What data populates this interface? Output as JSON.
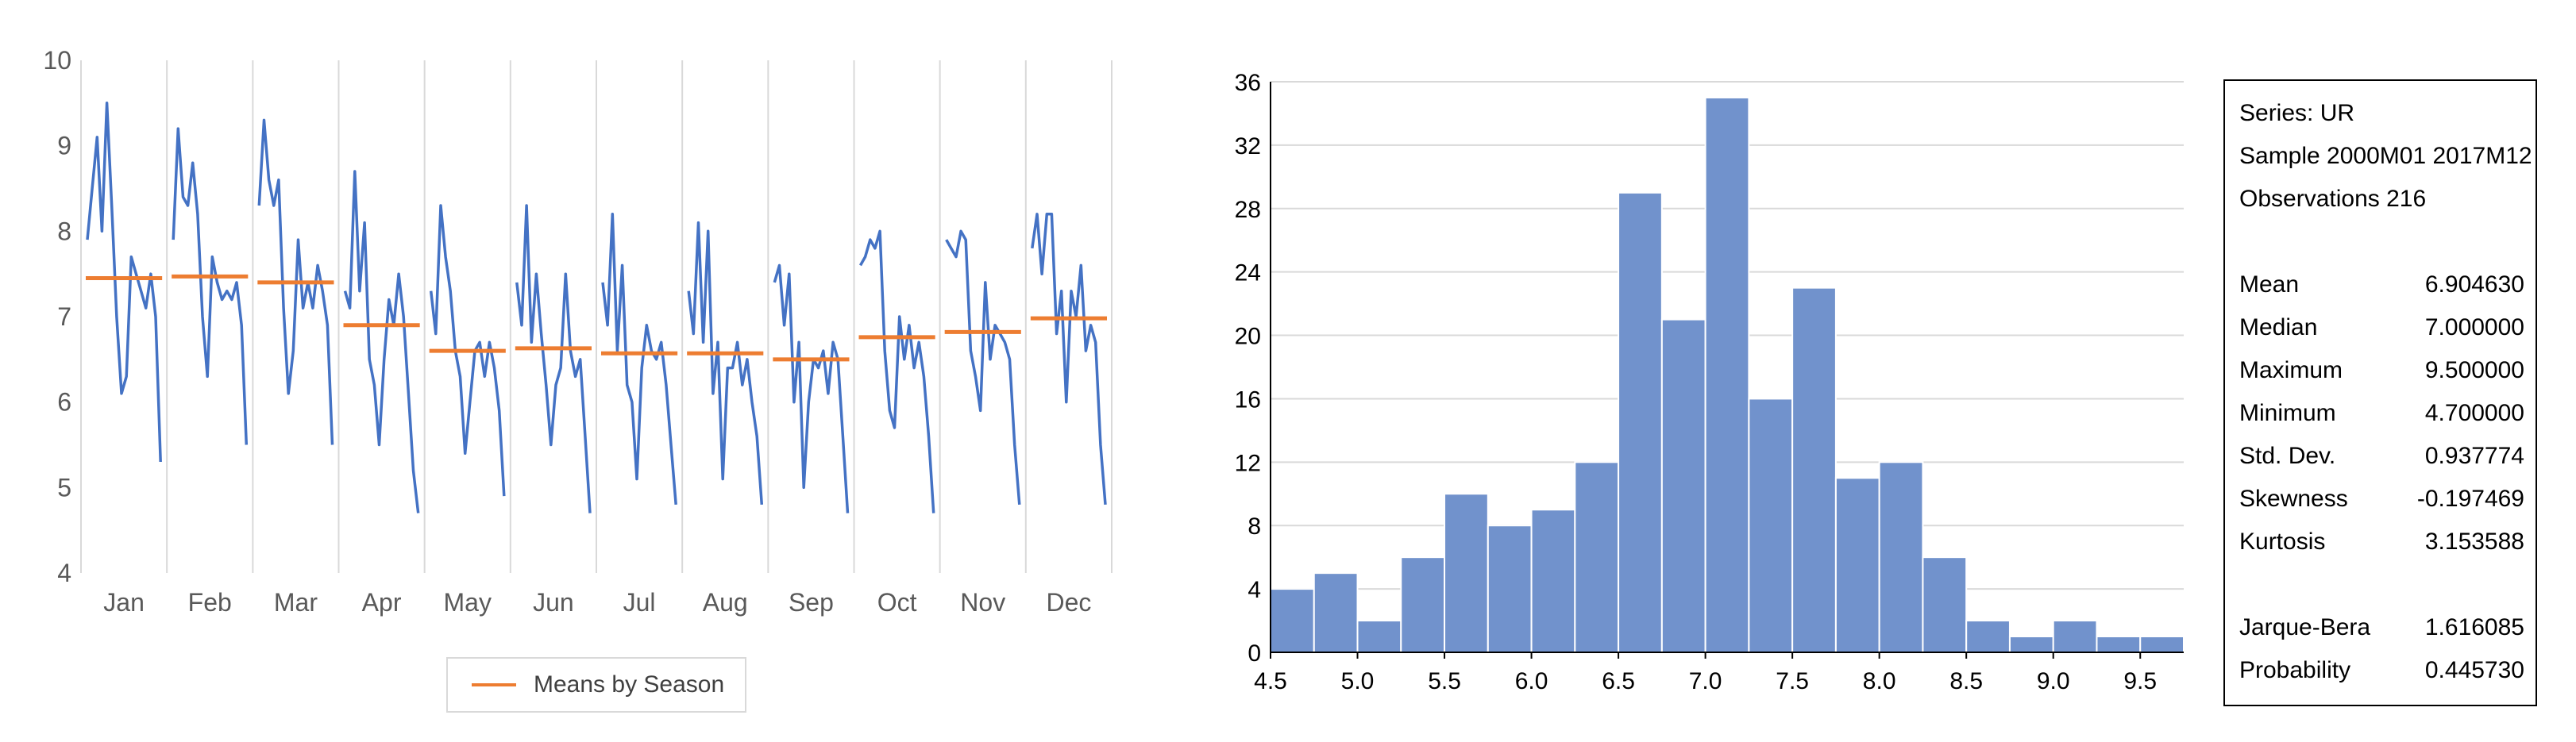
{
  "chart_data": [
    {
      "type": "line",
      "title": "",
      "xlabel": "",
      "ylabel": "",
      "ylim": [
        4,
        10
      ],
      "yticks": [
        4,
        5,
        6,
        7,
        8,
        9,
        10
      ],
      "categories": [
        "Jan",
        "Feb",
        "Mar",
        "Apr",
        "May",
        "Jun",
        "Jul",
        "Aug",
        "Sep",
        "Oct",
        "Nov",
        "Dec"
      ],
      "series": [
        {
          "name": "",
          "color": "#4472c4",
          "values_by_season": [
            [
              7.9,
              8.5,
              9.1,
              8.0,
              9.5,
              8.3,
              7.0,
              6.1,
              6.3,
              7.7,
              7.5,
              7.3,
              7.1,
              7.5,
              7.0,
              5.3
            ],
            [
              7.9,
              9.2,
              8.4,
              8.3,
              8.8,
              8.2,
              7.0,
              6.3,
              7.7,
              7.4,
              7.2,
              7.3,
              7.2,
              7.4,
              6.9,
              5.5
            ],
            [
              8.3,
              9.3,
              8.6,
              8.3,
              8.6,
              7.1,
              6.1,
              6.6,
              7.9,
              7.1,
              7.4,
              7.1,
              7.6,
              7.3,
              6.9,
              5.5
            ],
            [
              7.3,
              7.1,
              8.7,
              7.3,
              8.1,
              6.5,
              6.2,
              5.5,
              6.5,
              7.2,
              6.9,
              7.5,
              7.0,
              6.1,
              5.2,
              4.7
            ],
            [
              7.3,
              6.8,
              8.3,
              7.7,
              7.3,
              6.6,
              6.3,
              5.4,
              6.0,
              6.6,
              6.7,
              6.3,
              6.7,
              6.4,
              5.9,
              4.9
            ],
            [
              7.4,
              6.9,
              8.3,
              6.7,
              7.5,
              6.8,
              6.2,
              5.5,
              6.2,
              6.4,
              7.5,
              6.6,
              6.3,
              6.5,
              5.6,
              4.7
            ],
            [
              7.4,
              6.9,
              8.2,
              6.6,
              7.6,
              6.2,
              6.0,
              5.1,
              6.4,
              6.9,
              6.6,
              6.5,
              6.7,
              6.2,
              5.5,
              4.8
            ],
            [
              7.3,
              6.8,
              8.1,
              6.7,
              8.0,
              6.1,
              6.7,
              5.1,
              6.4,
              6.4,
              6.7,
              6.2,
              6.5,
              6.0,
              5.6,
              4.8
            ],
            [
              7.4,
              7.6,
              6.9,
              7.5,
              6.0,
              6.7,
              5.0,
              6.0,
              6.5,
              6.4,
              6.6,
              6.1,
              6.7,
              6.5,
              5.6,
              4.7
            ],
            [
              7.6,
              7.7,
              7.9,
              7.8,
              8.0,
              6.6,
              5.9,
              5.7,
              7.0,
              6.5,
              6.9,
              6.4,
              6.7,
              6.3,
              5.6,
              4.7
            ],
            [
              7.9,
              7.8,
              7.7,
              8.0,
              7.9,
              6.6,
              6.3,
              5.9,
              7.4,
              6.5,
              6.9,
              6.8,
              6.7,
              6.5,
              5.5,
              4.8
            ],
            [
              7.8,
              8.2,
              7.5,
              8.2,
              8.2,
              6.8,
              7.3,
              6.0,
              7.3,
              7.0,
              7.6,
              6.6,
              6.9,
              6.7,
              5.5,
              4.8
            ]
          ]
        },
        {
          "name": "Means by Season",
          "color": "#ed7d31",
          "values": [
            7.45,
            7.47,
            7.4,
            6.9,
            6.6,
            6.63,
            6.57,
            6.57,
            6.5,
            6.76,
            6.82,
            6.98
          ]
        }
      ],
      "legend": {
        "position": "bottom",
        "entries": [
          "Means by Season"
        ]
      },
      "grid": {
        "vertical": true,
        "horizontal": false
      }
    },
    {
      "type": "bar",
      "title": "",
      "xlabel": "",
      "ylabel": "",
      "bins": [
        {
          "x0": 4.5,
          "x1": 4.75,
          "count": 4
        },
        {
          "x0": 4.75,
          "x1": 5.0,
          "count": 5
        },
        {
          "x0": 5.0,
          "x1": 5.25,
          "count": 2
        },
        {
          "x0": 5.25,
          "x1": 5.5,
          "count": 6
        },
        {
          "x0": 5.5,
          "x1": 5.75,
          "count": 10
        },
        {
          "x0": 5.75,
          "x1": 6.0,
          "count": 8
        },
        {
          "x0": 6.0,
          "x1": 6.25,
          "count": 9
        },
        {
          "x0": 6.25,
          "x1": 6.5,
          "count": 12
        },
        {
          "x0": 6.5,
          "x1": 6.75,
          "count": 29
        },
        {
          "x0": 6.75,
          "x1": 7.0,
          "count": 21
        },
        {
          "x0": 7.0,
          "x1": 7.25,
          "count": 35
        },
        {
          "x0": 7.25,
          "x1": 7.5,
          "count": 16
        },
        {
          "x0": 7.5,
          "x1": 7.75,
          "count": 23
        },
        {
          "x0": 7.75,
          "x1": 8.0,
          "count": 11
        },
        {
          "x0": 8.0,
          "x1": 8.25,
          "count": 12
        },
        {
          "x0": 8.25,
          "x1": 8.5,
          "count": 6
        },
        {
          "x0": 8.5,
          "x1": 8.75,
          "count": 2
        },
        {
          "x0": 8.75,
          "x1": 9.0,
          "count": 1
        },
        {
          "x0": 9.0,
          "x1": 9.25,
          "count": 2
        },
        {
          "x0": 9.25,
          "x1": 9.5,
          "count": 1
        },
        {
          "x0": 9.5,
          "x1": 9.75,
          "count": 1
        }
      ],
      "xlim": [
        4.5,
        9.75
      ],
      "xticks": [
        "4.5",
        "5.0",
        "5.5",
        "6.0",
        "6.5",
        "7.0",
        "7.5",
        "8.0",
        "8.5",
        "9.0",
        "9.5"
      ],
      "ylim": [
        0,
        36
      ],
      "yticks": [
        "0",
        "4",
        "8",
        "12",
        "16",
        "20",
        "24",
        "28",
        "32",
        "36"
      ],
      "bar_color": "#7192cc",
      "grid": {
        "horizontal": true,
        "vertical": false
      }
    }
  ],
  "stats": {
    "series": "Series: UR",
    "sample": "Sample 2000M01 2017M12",
    "observations": "Observations 216",
    "rows": [
      {
        "label": "Mean",
        "value": "6.904630"
      },
      {
        "label": "Median",
        "value": "7.000000"
      },
      {
        "label": "Maximum",
        "value": "9.500000"
      },
      {
        "label": "Minimum",
        "value": "4.700000"
      },
      {
        "label": "Std. Dev.",
        "value": "0.937774"
      },
      {
        "label": "Skewness",
        "value": "-0.197469"
      },
      {
        "label": "Kurtosis",
        "value": "3.153588"
      }
    ],
    "test_rows": [
      {
        "label": "Jarque-Bera",
        "value": "1.616085"
      },
      {
        "label": "Probability",
        "value": "0.445730"
      }
    ]
  }
}
